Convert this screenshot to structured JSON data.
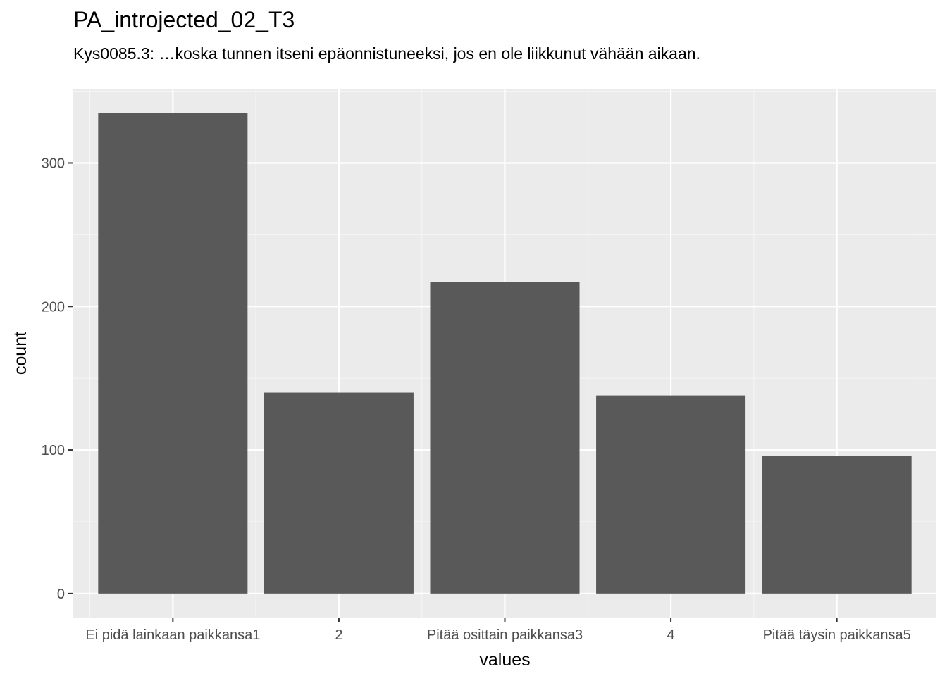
{
  "chart_data": {
    "type": "bar",
    "title": "PA_introjected_02_T3",
    "subtitle": "Kys0085.3: …koska tunnen itseni epäonnistuneeksi, jos en ole liikkunut vähään aikaan.",
    "xlabel": "values",
    "ylabel": "count",
    "categories": [
      "Ei pidä lainkaan paikkansa1",
      "2",
      "Pitää osittain paikkansa3",
      "4",
      "Pitää täysin paikkansa5"
    ],
    "values": [
      335,
      140,
      217,
      138,
      96
    ],
    "ylim": [
      -16.75,
      351.75
    ],
    "yticks": [
      0,
      100,
      200,
      300
    ],
    "grid": true,
    "colors": {
      "bar": "#595959",
      "panel": "#ebebeb",
      "grid_major": "#ffffff",
      "grid_minor": "#f5f5f5"
    }
  }
}
